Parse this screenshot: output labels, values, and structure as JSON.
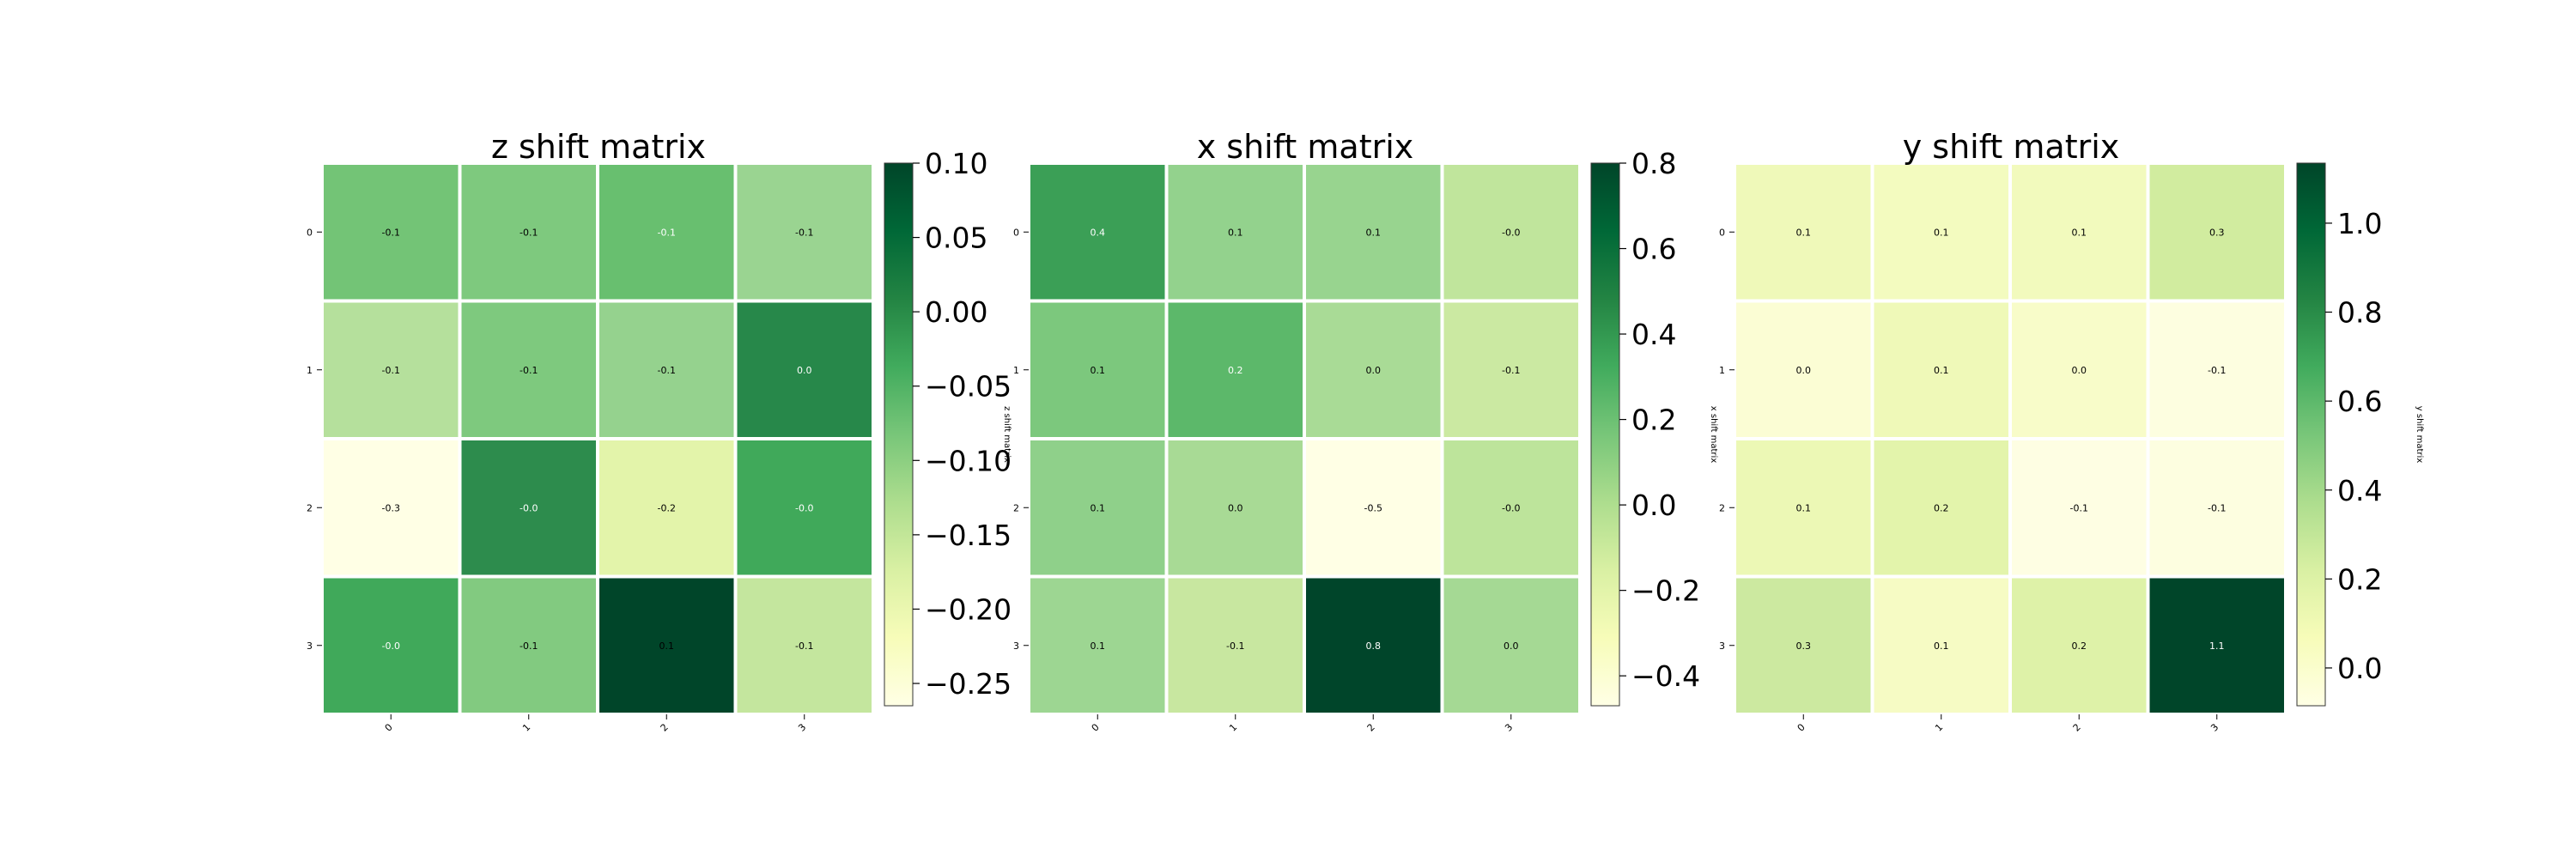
{
  "chart_data": [
    {
      "type": "heatmap",
      "title": "z shift matrix",
      "colorbar_label": "z shift matrix",
      "x_categories": [
        "0",
        "1",
        "2",
        "3"
      ],
      "y_categories": [
        "0",
        "1",
        "2",
        "3"
      ],
      "values": [
        [
          -0.1,
          -0.1,
          -0.1,
          -0.1
        ],
        [
          -0.1,
          -0.1,
          -0.1,
          0.0
        ],
        [
          -0.3,
          -0.0,
          -0.2,
          -0.0
        ],
        [
          -0.0,
          -0.1,
          0.1,
          -0.1
        ]
      ],
      "cell_colors": [
        [
          "#73c476",
          "#7ec97e",
          "#68bf6f",
          "#9ad491"
        ],
        [
          "#b5e09c",
          "#7ec97e",
          "#95d28e",
          "#27884a"
        ],
        [
          "#ffffe5",
          "#2d8c4d",
          "#e3f4aa",
          "#40a95a"
        ],
        [
          "#40a95a",
          "#82ca80",
          "#004529",
          "#c4e69e"
        ]
      ],
      "label_colors": [
        [
          "#000000",
          "#000000",
          "#ffffff",
          "#000000"
        ],
        [
          "#000000",
          "#000000",
          "#000000",
          "#ffffff"
        ],
        [
          "#000000",
          "#ffffff",
          "#000000",
          "#ffffff"
        ],
        [
          "#ffffff",
          "#000000",
          "#000000",
          "#000000"
        ]
      ],
      "colorbar": {
        "range": [
          -0.265,
          0.1
        ],
        "ticks": [
          0.1,
          0.05,
          0.0,
          -0.05,
          -0.1,
          -0.15,
          -0.2,
          -0.25
        ],
        "tick_labels": [
          "0.10",
          "0.05",
          "0.00",
          "−0.05",
          "−0.10",
          "−0.15",
          "−0.20",
          "−0.25"
        ]
      }
    },
    {
      "type": "heatmap",
      "title": "x shift matrix",
      "colorbar_label": "x shift matrix",
      "x_categories": [
        "0",
        "1",
        "2",
        "3"
      ],
      "y_categories": [
        "0",
        "1",
        "2",
        "3"
      ],
      "values": [
        [
          0.4,
          0.1,
          0.1,
          -0.0
        ],
        [
          0.1,
          0.2,
          0.0,
          -0.1
        ],
        [
          0.1,
          0.0,
          -0.5,
          -0.0
        ],
        [
          0.1,
          -0.1,
          0.8,
          0.0
        ]
      ],
      "cell_colors": [
        [
          "#3b9f56",
          "#93d28d",
          "#98d48f",
          "#c0e59c"
        ],
        [
          "#7cc87d",
          "#5cb86a",
          "#a9db96",
          "#cbe9a2"
        ],
        [
          "#8fd08a",
          "#a8da95",
          "#ffffe5",
          "#bde49b"
        ],
        [
          "#9dd692",
          "#c8e7a0",
          "#00452a",
          "#a5d994"
        ]
      ],
      "label_colors": [
        [
          "#ffffff",
          "#000000",
          "#000000",
          "#000000"
        ],
        [
          "#000000",
          "#ffffff",
          "#000000",
          "#000000"
        ],
        [
          "#000000",
          "#000000",
          "#000000",
          "#000000"
        ],
        [
          "#000000",
          "#000000",
          "#ffffff",
          "#000000"
        ]
      ],
      "colorbar": {
        "range": [
          -0.47,
          0.8
        ],
        "ticks": [
          0.8,
          0.6,
          0.4,
          0.2,
          0.0,
          -0.2,
          -0.4
        ],
        "tick_labels": [
          "0.8",
          "0.6",
          "0.4",
          "0.2",
          "0.0",
          "−0.2",
          "−0.4"
        ]
      }
    },
    {
      "type": "heatmap",
      "title": "y shift matrix",
      "colorbar_label": "y shift matrix",
      "x_categories": [
        "0",
        "1",
        "2",
        "3"
      ],
      "y_categories": [
        "0",
        "1",
        "2",
        "3"
      ],
      "values": [
        [
          0.1,
          0.1,
          0.1,
          0.3
        ],
        [
          0.0,
          0.1,
          0.0,
          -0.1
        ],
        [
          0.1,
          0.2,
          -0.1,
          -0.1
        ],
        [
          0.3,
          0.1,
          0.2,
          1.1
        ]
      ],
      "cell_colors": [
        [
          "#eff9b9",
          "#f3fbbf",
          "#f2fabd",
          "#d1ec9f"
        ],
        [
          "#fbfdd4",
          "#eff9b8",
          "#f8fcc9",
          "#fdfee0"
        ],
        [
          "#ecf8b5",
          "#e3f4ab",
          "#fefee3",
          "#fdfee0"
        ],
        [
          "#cce9a0",
          "#f6fbc4",
          "#def2a8",
          "#004529"
        ]
      ],
      "label_colors": [
        [
          "#000000",
          "#000000",
          "#000000",
          "#000000"
        ],
        [
          "#000000",
          "#000000",
          "#000000",
          "#000000"
        ],
        [
          "#000000",
          "#000000",
          "#000000",
          "#000000"
        ],
        [
          "#000000",
          "#000000",
          "#000000",
          "#ffffff"
        ]
      ],
      "colorbar": {
        "range": [
          -0.085,
          1.135
        ],
        "ticks": [
          1.0,
          0.8,
          0.6,
          0.4,
          0.2,
          0.0
        ],
        "tick_labels": [
          "1.0",
          "0.8",
          "0.6",
          "0.4",
          "0.2",
          "0.0"
        ]
      }
    }
  ],
  "colormap": [
    "#ffffe5",
    "#f7fcb9",
    "#d9f0a3",
    "#addd8e",
    "#78c679",
    "#41ab5d",
    "#238443",
    "#006837",
    "#004529"
  ]
}
